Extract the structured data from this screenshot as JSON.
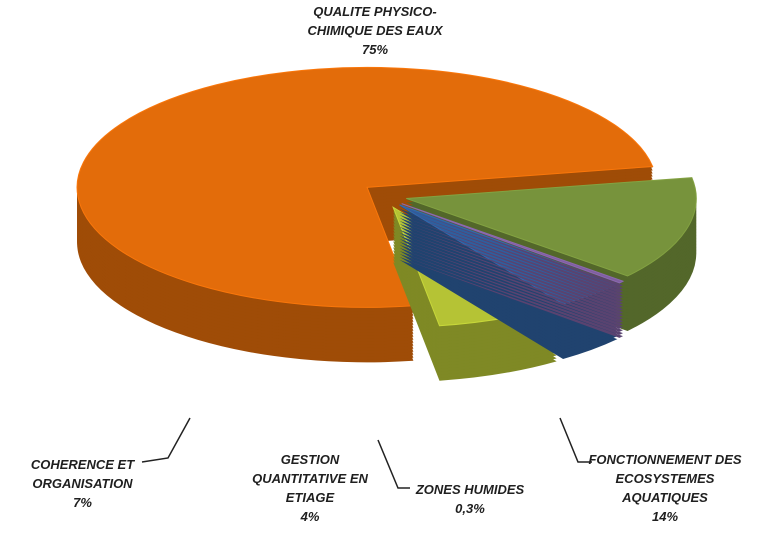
{
  "chart_data": {
    "type": "pie",
    "categories": [
      "FONCTIONNEMENT DES ECOSYSTEMES AQUATIQUES",
      "ZONES HUMIDES",
      "GESTION QUANTITATIVE EN ETIAGE",
      "COHERENCE ET ORGANISATION",
      "QUALITE PHYSICO-CHIMIQUE DES EAUX"
    ],
    "values": [
      14,
      0.3,
      4,
      7,
      75
    ],
    "value_labels": [
      "14%",
      "0,3%",
      "4%",
      "7%",
      "75%"
    ],
    "colors": [
      "#77933c",
      "#7f5fa0",
      "#2e5f9e",
      "#b5c335",
      "#e36c0a"
    ]
  }
}
